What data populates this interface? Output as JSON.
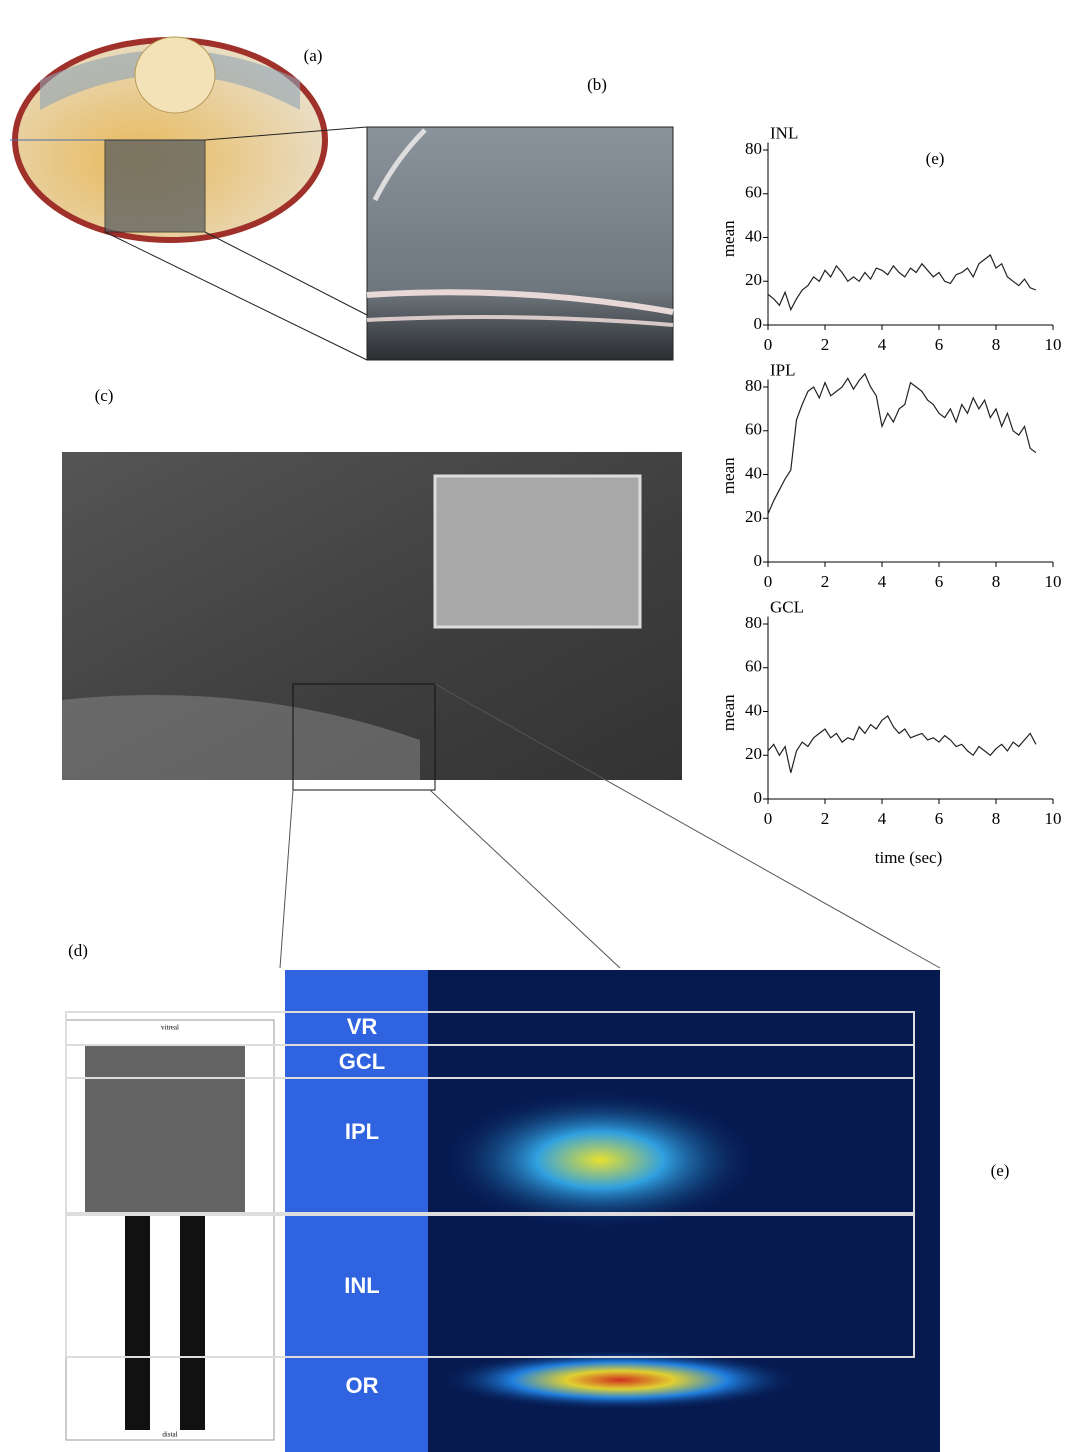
{
  "panel_labels": [
    "(a)",
    "(b)",
    "(c)",
    "(d)",
    "(e)",
    "(e)"
  ],
  "layers": [
    "VR",
    "GCL",
    "IPL",
    "INL",
    "OR"
  ],
  "drawing_labels": [
    "vitreal",
    "distal"
  ],
  "chart_data": [
    {
      "type": "line",
      "title": "INL",
      "ylabel": "mean",
      "x": [
        0,
        0.2,
        0.4,
        0.6,
        0.8,
        1,
        1.2,
        1.4,
        1.6,
        1.8,
        2,
        2.2,
        2.4,
        2.6,
        2.8,
        3,
        3.2,
        3.4,
        3.6,
        3.8,
        4,
        4.2,
        4.4,
        4.6,
        4.8,
        5,
        5.2,
        5.4,
        5.6,
        5.8,
        6,
        6.2,
        6.4,
        6.6,
        6.8,
        7,
        7.2,
        7.4,
        7.6,
        7.8,
        8,
        8.2,
        8.4,
        8.6,
        8.8,
        9,
        9.2,
        9.4
      ],
      "series": [
        {
          "color": "#222222",
          "values": [
            14,
            12,
            9,
            15,
            7,
            12,
            16,
            18,
            22,
            20,
            25,
            22,
            27,
            24,
            20,
            22,
            20,
            24,
            21,
            26,
            25,
            23,
            27,
            24,
            22,
            26,
            24,
            28,
            25,
            22,
            24,
            20,
            19,
            23,
            24,
            26,
            22,
            28,
            30,
            32,
            26,
            28,
            22,
            20,
            18,
            21,
            17,
            16
          ]
        }
      ],
      "xlim": [
        0,
        10
      ],
      "ylim": [
        0,
        88
      ],
      "xticks": [
        0,
        2,
        4,
        6,
        8,
        10
      ],
      "yticks": [
        0,
        20,
        40,
        60,
        80
      ]
    },
    {
      "type": "line",
      "title": "IPL",
      "ylabel": "mean",
      "x": [
        0,
        0.2,
        0.4,
        0.6,
        0.8,
        1,
        1.2,
        1.4,
        1.6,
        1.8,
        2,
        2.2,
        2.4,
        2.6,
        2.8,
        3,
        3.2,
        3.4,
        3.6,
        3.8,
        4,
        4.2,
        4.4,
        4.6,
        4.8,
        5,
        5.2,
        5.4,
        5.6,
        5.8,
        6,
        6.2,
        6.4,
        6.6,
        6.8,
        7,
        7.2,
        7.4,
        7.6,
        7.8,
        8,
        8.2,
        8.4,
        8.6,
        8.8,
        9,
        9.2,
        9.4
      ],
      "series": [
        {
          "color": "#222222",
          "values": [
            22,
            28,
            33,
            38,
            42,
            65,
            72,
            78,
            80,
            75,
            82,
            76,
            78,
            80,
            84,
            79,
            83,
            86,
            80,
            76,
            62,
            68,
            64,
            70,
            72,
            82,
            80,
            78,
            74,
            72,
            68,
            66,
            70,
            64,
            72,
            68,
            75,
            70,
            74,
            66,
            70,
            62,
            68,
            60,
            58,
            62,
            52,
            50
          ]
        }
      ],
      "xlim": [
        0,
        10
      ],
      "ylim": [
        0,
        88
      ],
      "xticks": [
        0,
        2,
        4,
        6,
        8,
        10
      ],
      "yticks": [
        0,
        20,
        40,
        60,
        80
      ]
    },
    {
      "type": "line",
      "title": "GCL",
      "ylabel": "mean",
      "xlabel": "time (sec)",
      "x": [
        0,
        0.2,
        0.4,
        0.6,
        0.8,
        1,
        1.2,
        1.4,
        1.6,
        1.8,
        2,
        2.2,
        2.4,
        2.6,
        2.8,
        3,
        3.2,
        3.4,
        3.6,
        3.8,
        4,
        4.2,
        4.4,
        4.6,
        4.8,
        5,
        5.2,
        5.4,
        5.6,
        5.8,
        6,
        6.2,
        6.4,
        6.6,
        6.8,
        7,
        7.2,
        7.4,
        7.6,
        7.8,
        8,
        8.2,
        8.4,
        8.6,
        8.8,
        9,
        9.2,
        9.4
      ],
      "series": [
        {
          "color": "#222222",
          "values": [
            22,
            25,
            20,
            24,
            12,
            22,
            26,
            24,
            28,
            30,
            32,
            28,
            30,
            26,
            28,
            27,
            33,
            30,
            34,
            32,
            36,
            38,
            33,
            30,
            32,
            28,
            29,
            30,
            27,
            28,
            26,
            29,
            27,
            24,
            25,
            22,
            20,
            24,
            22,
            20,
            23,
            25,
            22,
            26,
            24,
            27,
            30,
            25
          ]
        }
      ],
      "xlim": [
        0,
        10
      ],
      "ylim": [
        0,
        88
      ],
      "xticks": [
        0,
        2,
        4,
        6,
        8,
        10
      ],
      "yticks": [
        0,
        20,
        40,
        60,
        80
      ]
    }
  ]
}
